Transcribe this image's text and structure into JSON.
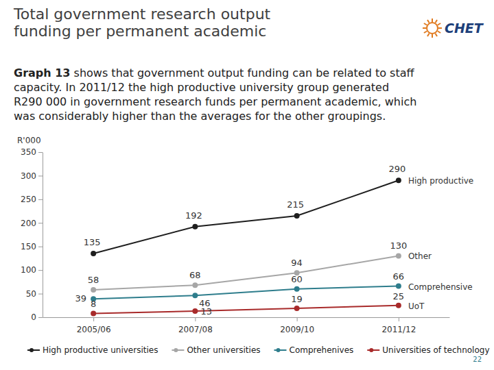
{
  "slide": {
    "title": [
      "Total government research output",
      "funding per permanent academic"
    ],
    "logo": "CHET",
    "text_lead": "Graph 13",
    "text_lines": [
      "shows that government output funding can be related to staff",
      "capacity. In 2011/12 the high productive university group generated",
      "R290 000 in government research funds per permanent academic, which",
      "was considerably higher than the averages for the other groupings."
    ],
    "page_number": 22
  },
  "chart_data": {
    "type": "line",
    "ylabel": "R'000",
    "categories": [
      "2005/06",
      "2007/08",
      "2009/10",
      "2011/12"
    ],
    "series": [
      {
        "name": "High productive universities",
        "color": "#1e1e1e",
        "marker": "circle",
        "values": [
          135,
          192,
          215,
          290
        ]
      },
      {
        "name": "Other universities",
        "color": "#a6a6a6",
        "marker": "circle",
        "values": [
          58,
          68,
          94,
          130
        ]
      },
      {
        "name": "Comprehenives",
        "color": "#2e7d8c",
        "marker": "circle",
        "values": [
          39,
          46,
          60,
          66
        ]
      },
      {
        "name": "Universities of technology",
        "color": "#a82a2a",
        "marker": "circle",
        "values": [
          8,
          13,
          19,
          25
        ]
      }
    ],
    "annotations": [
      "High productive",
      "Other",
      "Comprehensive",
      "UoT"
    ],
    "ylim": [
      0,
      350
    ],
    "yticks": [
      0,
      50,
      100,
      150,
      200,
      250,
      300,
      350
    ],
    "grid": false,
    "legend": "bottom",
    "data_labels": true
  }
}
